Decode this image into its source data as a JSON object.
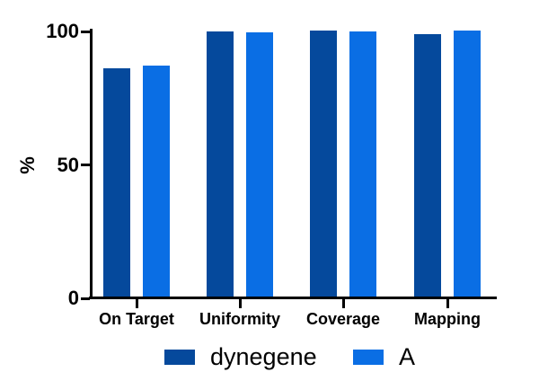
{
  "chart_data": {
    "type": "bar",
    "title": "",
    "xlabel": "",
    "ylabel": "%",
    "categories": [
      "On Target",
      "Uniformity",
      "Coverage",
      "Mapping"
    ],
    "series": [
      {
        "name": "dynegene",
        "color": "#05499C",
        "values": [
          85.9,
          99.7,
          100,
          98.6
        ]
      },
      {
        "name": "A",
        "color": "#0A6EE4",
        "values": [
          86.8,
          99.3,
          99.8,
          100
        ]
      }
    ],
    "ylim": [
      0,
      100
    ],
    "yticks": [
      0,
      50,
      100
    ],
    "grid": false,
    "legend_position": "bottom"
  },
  "colors": {
    "axis": "#000000",
    "text": "#000000",
    "background": "#FFFFFF",
    "series_dark": "#05499C",
    "series_light": "#0A6EE4"
  }
}
